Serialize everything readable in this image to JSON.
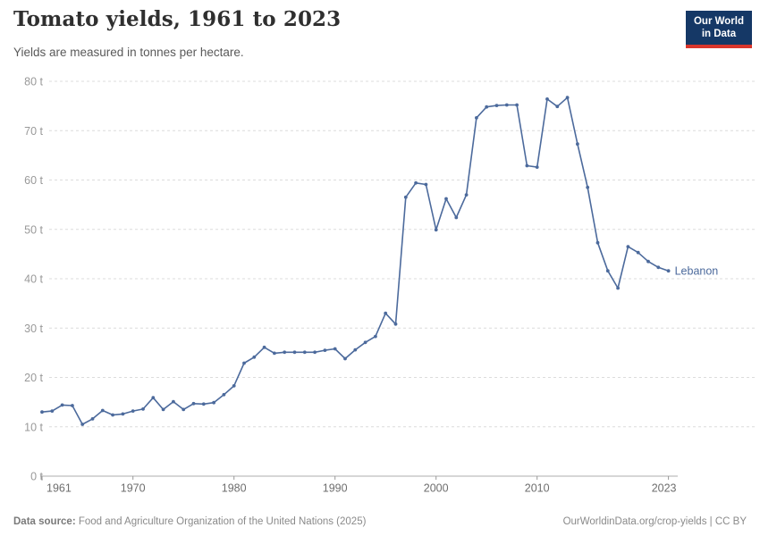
{
  "header": {
    "title": "Tomato yields, 1961 to 2023",
    "subtitle": "Yields are measured in tonnes per hectare."
  },
  "logo": {
    "line1": "Our World",
    "line2": "in Data",
    "bg_color": "#153866",
    "accent_color": "#d9352c"
  },
  "chart_data": {
    "type": "line",
    "title": "Tomato yields, 1961 to 2023",
    "subtitle": "Yields are measured in tonnes per hectare.",
    "ylabel": "",
    "xlabel": "",
    "unit": "tonnes per hectare",
    "ylim": [
      0,
      80
    ],
    "yticks": [
      0,
      10,
      20,
      30,
      40,
      50,
      60,
      70,
      80
    ],
    "ytick_suffix": " t",
    "xticks": [
      1961,
      1970,
      1980,
      1990,
      2000,
      2010,
      2023
    ],
    "grid": "dashed-horizontal",
    "legend_position": "end-of-line-label",
    "series": [
      {
        "name": "Lebanon",
        "color": "#4C6A9C",
        "years": [
          1961,
          1962,
          1963,
          1964,
          1965,
          1966,
          1967,
          1968,
          1969,
          1970,
          1971,
          1972,
          1973,
          1974,
          1975,
          1976,
          1977,
          1978,
          1979,
          1980,
          1981,
          1982,
          1983,
          1984,
          1985,
          1986,
          1987,
          1988,
          1989,
          1990,
          1991,
          1992,
          1993,
          1994,
          1995,
          1996,
          1997,
          1998,
          1999,
          2000,
          2001,
          2002,
          2003,
          2004,
          2005,
          2006,
          2007,
          2008,
          2009,
          2010,
          2011,
          2012,
          2013,
          2014,
          2015,
          2016,
          2017,
          2018,
          2019,
          2020,
          2021,
          2022,
          2023
        ],
        "values": [
          13.0,
          13.2,
          14.4,
          14.3,
          10.5,
          11.6,
          13.3,
          12.4,
          12.6,
          13.2,
          13.6,
          15.9,
          13.5,
          15.1,
          13.5,
          14.7,
          14.6,
          14.9,
          16.5,
          18.3,
          22.9,
          24.1,
          26.1,
          24.9,
          25.1,
          25.1,
          25.1,
          25.1,
          25.5,
          25.8,
          23.8,
          25.6,
          27.1,
          28.3,
          33.0,
          30.8,
          56.5,
          59.4,
          59.1,
          49.9,
          56.2,
          52.4,
          57.0,
          72.6,
          74.8,
          75.1,
          75.2,
          75.2,
          62.9,
          62.6,
          76.4,
          74.9,
          76.7,
          67.3,
          58.5,
          47.3,
          41.6,
          38.1,
          46.5,
          45.3,
          43.5,
          42.3,
          41.6
        ]
      }
    ]
  },
  "footer": {
    "source_prefix": "Data source:",
    "source_text": " Food and Agriculture Organization of the United Nations (2025)",
    "link_text": "OurWorldinData.org/crop-yields",
    "separator": " | ",
    "license": "CC BY"
  },
  "colors": {
    "line": "#4C6A9C",
    "grid": "#dcdcdc",
    "axis": "#adadad",
    "tick": "#999999",
    "x_label": "#6e6e6e",
    "y_label": "#999999"
  }
}
